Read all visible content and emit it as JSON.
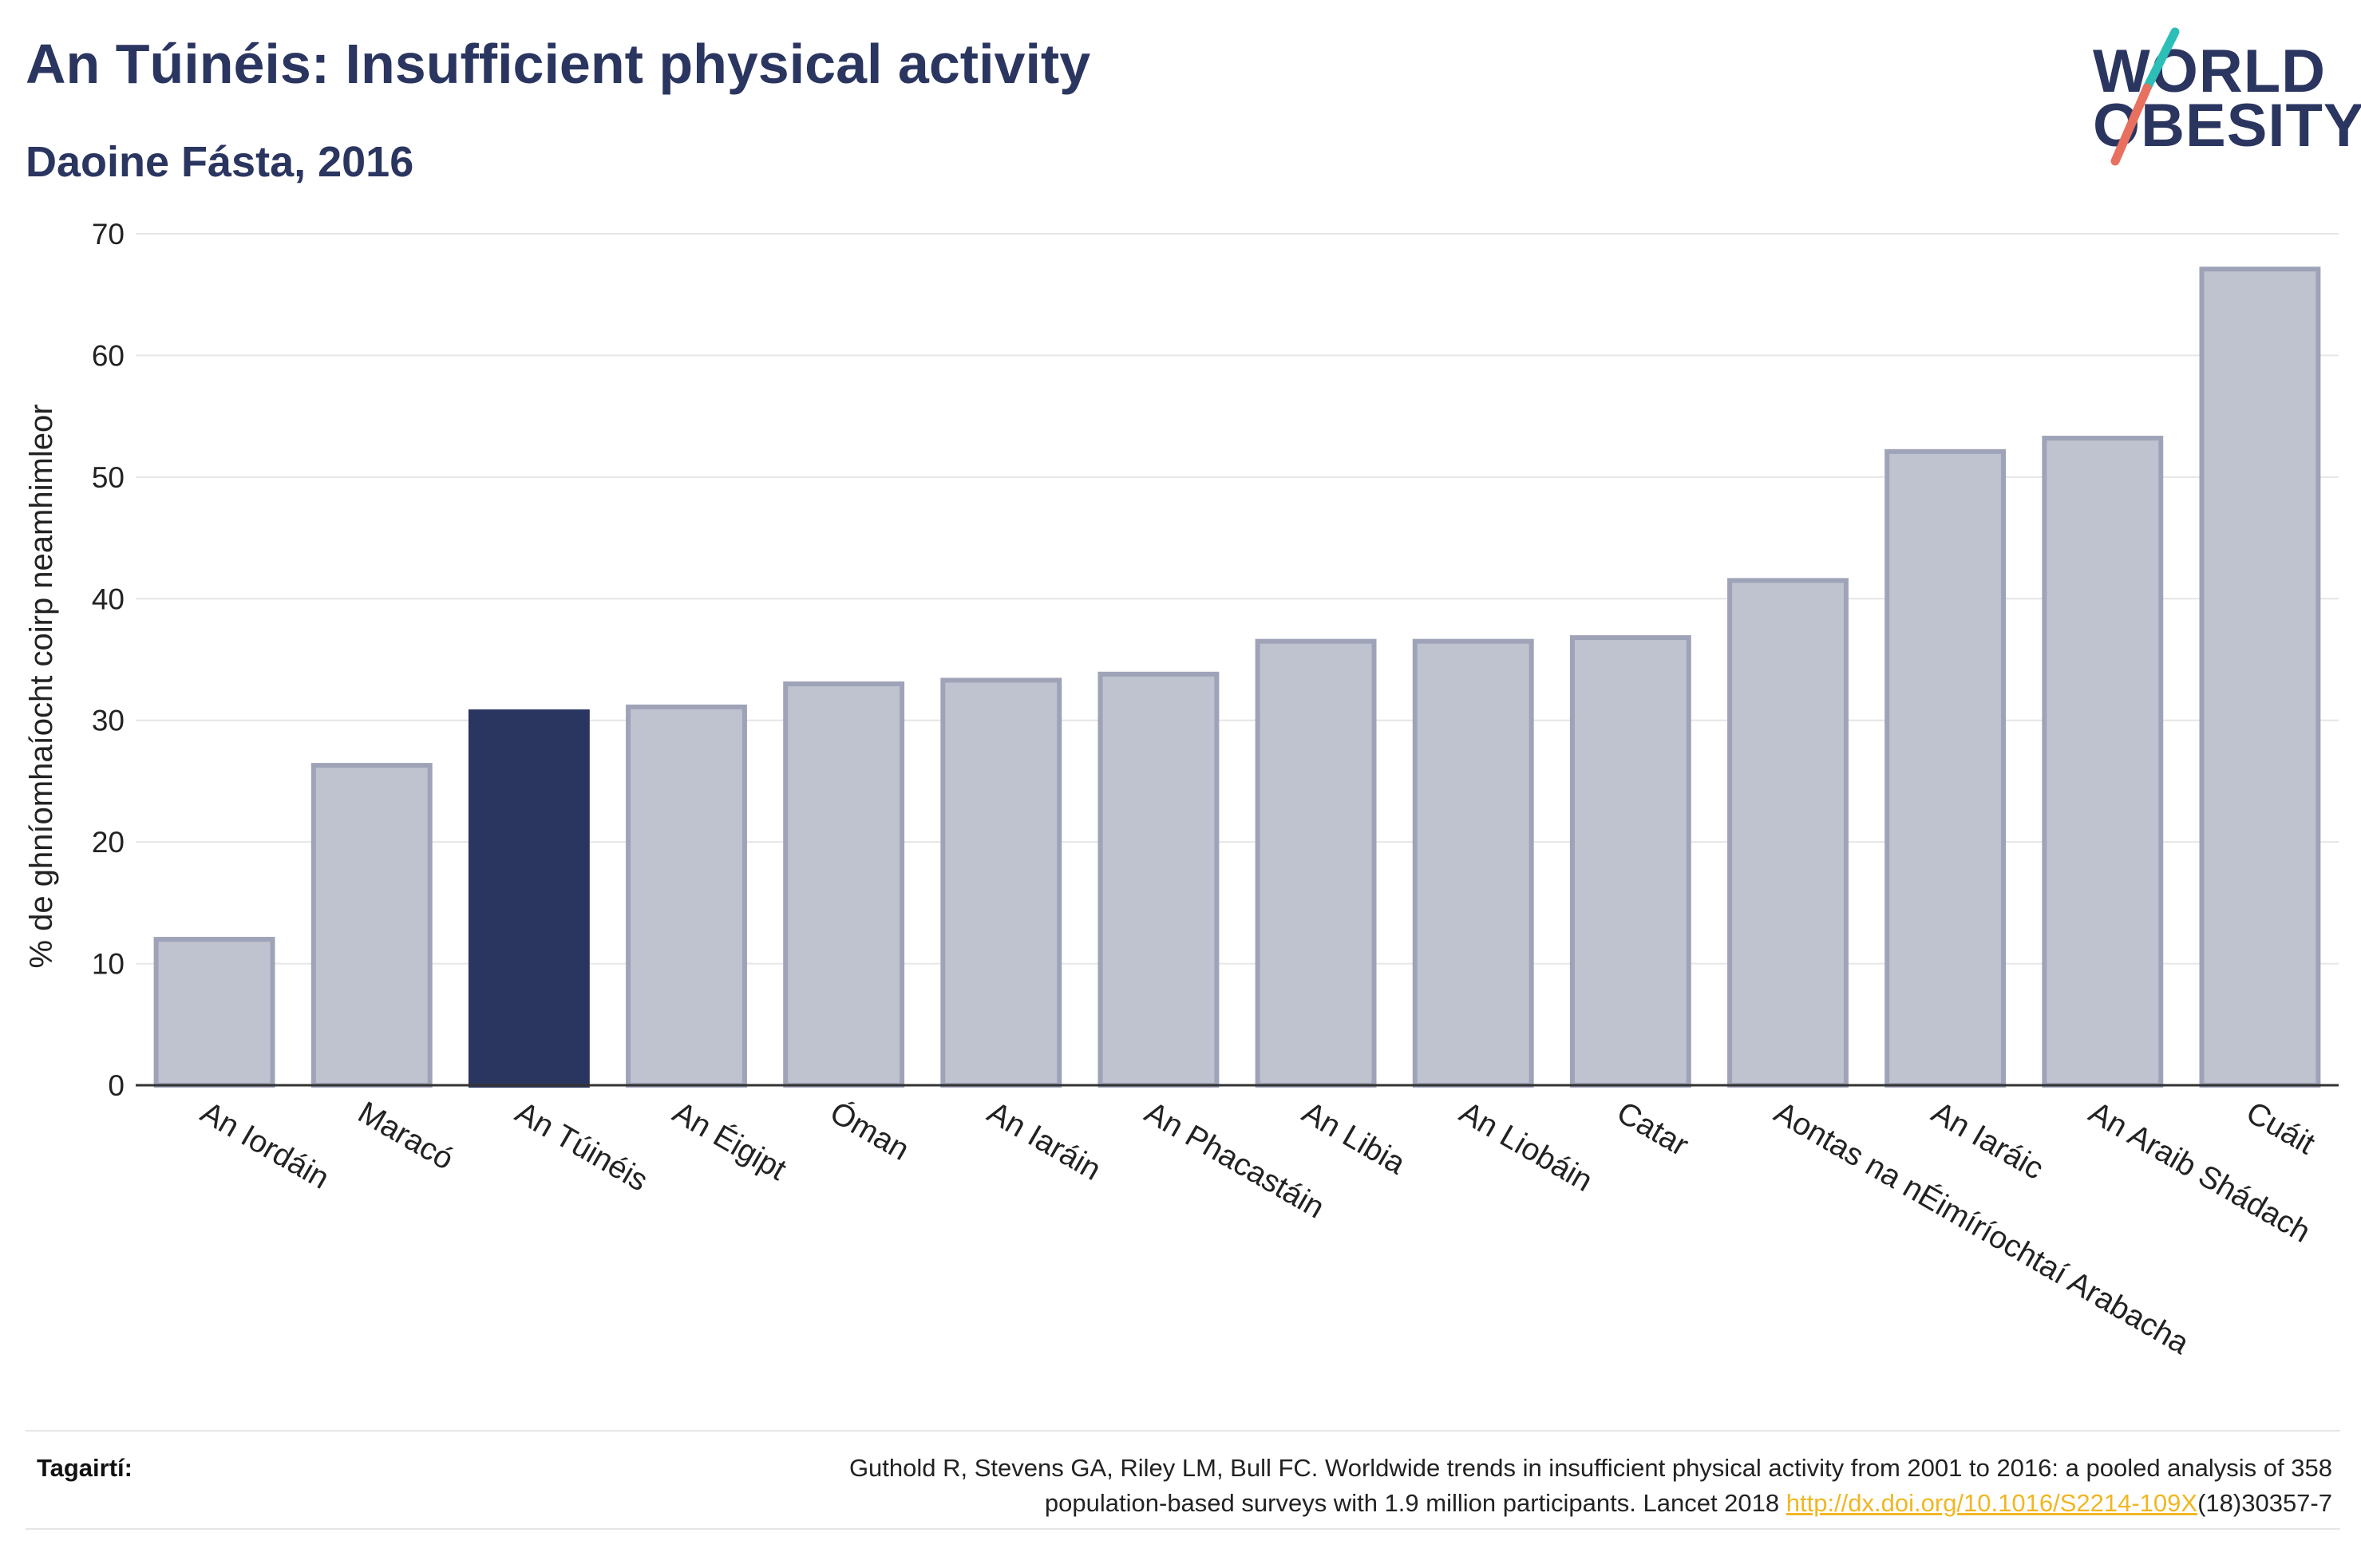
{
  "header": {
    "title": "An Túinéis: Insufficient physical activity",
    "subtitle": "Daoine Fásta, 2016"
  },
  "logo": {
    "line1": "WORLD",
    "line2": "OBESITY",
    "colors": {
      "text": "#2a3560",
      "slash_top": "#2bbfb8",
      "slash_bottom": "#e8705f"
    }
  },
  "chart_data": {
    "type": "bar",
    "ylabel": "% de ghníomhaíocht coirp neamhimleor",
    "ylim": [
      0,
      70
    ],
    "yticks": [
      0,
      10,
      20,
      30,
      40,
      50,
      60,
      70
    ],
    "grid": true,
    "highlight": "An Túinéis",
    "colors": {
      "bar": "#bfc2cf",
      "bar_border": "#9ea3b8",
      "highlight": "#2a3560"
    },
    "categories": [
      "An Iordáin",
      "Maracó",
      "An Túinéis",
      "An Éigipt",
      "Óman",
      "An Iaráin",
      "An Phacastáin",
      "An Libia",
      "An Liobáin",
      "Catar",
      "Aontas na nÉimíríochtaí Arabacha",
      "An Iaráic",
      "An Araib Shádach",
      "Cuáit"
    ],
    "values": [
      12.0,
      26.3,
      30.7,
      31.1,
      33.0,
      33.3,
      33.8,
      36.5,
      36.5,
      36.8,
      41.5,
      52.1,
      53.2,
      67.1
    ]
  },
  "references": {
    "label": "Tagairtí:",
    "text_line1": "Guthold R, Stevens GA, Riley LM, Bull FC. Worldwide trends in insufficient physical activity from 2001 to 2016: a pooled analysis of 358",
    "text_line2_pre": "population-based surveys with 1.9 million participants. Lancet 2018 ",
    "link": "http://dx.doi.org/10.1016/S2214-109X",
    "text_line2_post": "(18)30357-7"
  }
}
